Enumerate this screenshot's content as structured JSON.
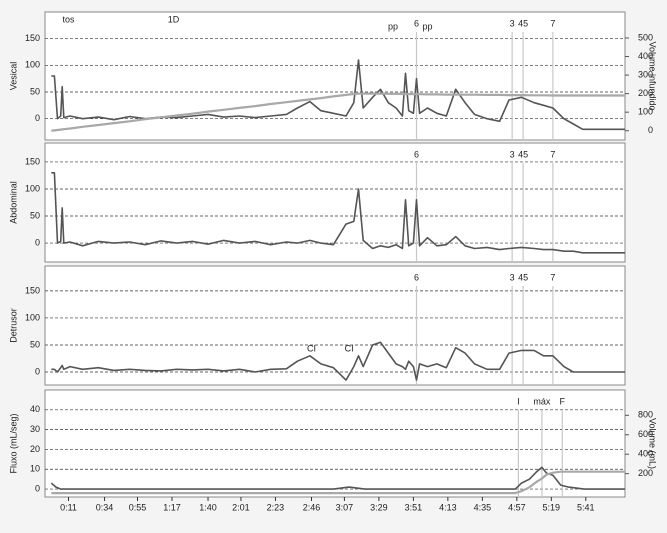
{
  "chart_data": [
    {
      "type": "line",
      "ylabel": "Vesical",
      "y2label": "Volume infundido",
      "xlim": [
        -4,
        366
      ],
      "ylim": [
        -40,
        200
      ],
      "yticks": [
        0,
        50,
        100,
        150
      ],
      "y2lim": [
        -50,
        640
      ],
      "y2ticks": [
        0,
        100,
        200,
        300,
        400,
        500
      ],
      "grid": true,
      "x": [
        0,
        2,
        4,
        6,
        7,
        8,
        12,
        20,
        30,
        40,
        50,
        60,
        70,
        80,
        90,
        100,
        110,
        120,
        130,
        140,
        150,
        157,
        165,
        172,
        180,
        188,
        193,
        196,
        199,
        205,
        210,
        215,
        220,
        224,
        226,
        228,
        231,
        233,
        235,
        240,
        246,
        252,
        258,
        264,
        270,
        278,
        286,
        292,
        300,
        308,
        314,
        320,
        327,
        333,
        339,
        350,
        366
      ],
      "series": [
        {
          "color": "#555555",
          "values": [
            80,
            80,
            0,
            5,
            60,
            2,
            5,
            0,
            3,
            -2,
            4,
            0,
            3,
            2,
            5,
            8,
            3,
            5,
            2,
            5,
            8,
            20,
            32,
            15,
            10,
            5,
            30,
            110,
            20,
            40,
            55,
            30,
            20,
            5,
            85,
            15,
            10,
            75,
            10,
            20,
            10,
            5,
            55,
            30,
            8,
            0,
            -5,
            35,
            40,
            30,
            25,
            20,
            0,
            -10,
            -20,
            -20,
            -20
          ]
        },
        {
          "color": "#a8a8a8",
          "axis": "y2",
          "values": [
            0,
            2,
            4,
            6,
            7,
            8,
            12,
            21,
            31,
            41,
            51,
            62,
            72,
            82,
            92,
            103,
            113,
            123,
            133,
            144,
            154,
            161,
            169,
            176,
            185,
            193,
            198,
            200,
            200,
            200,
            200,
            199,
            199,
            198,
            198,
            198,
            197,
            197,
            197,
            196,
            196,
            195,
            195,
            194,
            194,
            193,
            193,
            192,
            192,
            191,
            191,
            190,
            190,
            190,
            190,
            190,
            190
          ]
        }
      ],
      "annotations": [
        {
          "text": "tos",
          "x": 11,
          "y": 185
        },
        {
          "text": "1D",
          "x": 78,
          "y": 185
        },
        {
          "text": "pp",
          "x": 218,
          "y": 172
        },
        {
          "text": "pp",
          "x": 240,
          "y": 172
        }
      ],
      "markers": [
        {
          "label": "6",
          "x": 233
        },
        {
          "label": "3",
          "x": 294
        },
        {
          "label": "45",
          "x": 301
        },
        {
          "label": "7",
          "x": 320
        }
      ]
    },
    {
      "type": "line",
      "ylabel": "Abdominal",
      "xlim": [
        -4,
        366
      ],
      "ylim": [
        -35,
        185
      ],
      "yticks": [
        0,
        50,
        100,
        150
      ],
      "grid": true,
      "x": [
        0,
        2,
        4,
        6,
        7,
        8,
        12,
        20,
        30,
        40,
        50,
        60,
        70,
        80,
        90,
        100,
        110,
        120,
        130,
        140,
        150,
        157,
        165,
        172,
        180,
        188,
        193,
        196,
        199,
        205,
        210,
        215,
        220,
        224,
        226,
        228,
        231,
        233,
        235,
        240,
        246,
        252,
        258,
        264,
        270,
        278,
        286,
        292,
        300,
        308,
        314,
        320,
        327,
        333,
        339,
        350,
        366
      ],
      "series": [
        {
          "color": "#555555",
          "values": [
            130,
            130,
            0,
            3,
            65,
            0,
            2,
            -5,
            3,
            0,
            2,
            -3,
            4,
            0,
            3,
            -2,
            5,
            0,
            3,
            -3,
            2,
            0,
            5,
            0,
            -3,
            35,
            40,
            100,
            5,
            -10,
            -5,
            -8,
            -3,
            -10,
            80,
            -5,
            0,
            80,
            -5,
            10,
            -5,
            -3,
            12,
            -5,
            -10,
            -8,
            -12,
            -10,
            -8,
            -10,
            -12,
            -12,
            -15,
            -15,
            -18,
            -18,
            -18
          ]
        }
      ],
      "markers": [
        {
          "label": "6",
          "x": 233
        },
        {
          "label": "3",
          "x": 294
        },
        {
          "label": "45",
          "x": 301
        },
        {
          "label": "7",
          "x": 320
        }
      ]
    },
    {
      "type": "line",
      "ylabel": "Detrusor",
      "xlim": [
        -4,
        366
      ],
      "ylim": [
        -24,
        196
      ],
      "yticks": [
        0,
        50,
        100,
        150
      ],
      "grid": true,
      "x": [
        0,
        2,
        4,
        6,
        7,
        8,
        12,
        20,
        30,
        40,
        50,
        60,
        70,
        80,
        90,
        100,
        110,
        120,
        130,
        140,
        150,
        157,
        165,
        172,
        180,
        188,
        193,
        196,
        199,
        205,
        210,
        215,
        220,
        224,
        226,
        228,
        231,
        233,
        235,
        240,
        246,
        252,
        258,
        264,
        270,
        278,
        286,
        292,
        300,
        308,
        314,
        320,
        327,
        333,
        339,
        350,
        366
      ],
      "series": [
        {
          "color": "#555555",
          "values": [
            5,
            5,
            0,
            8,
            12,
            5,
            10,
            5,
            8,
            3,
            5,
            3,
            2,
            5,
            4,
            5,
            2,
            5,
            0,
            5,
            6,
            20,
            30,
            15,
            8,
            -15,
            10,
            30,
            10,
            50,
            55,
            35,
            15,
            10,
            5,
            20,
            10,
            -15,
            15,
            10,
            15,
            8,
            45,
            35,
            15,
            5,
            5,
            35,
            40,
            40,
            30,
            30,
            10,
            0,
            0,
            0,
            0
          ]
        }
      ],
      "annotations": [
        {
          "text": "CI",
          "x": 166,
          "y": 42
        },
        {
          "text": "CI",
          "x": 190,
          "y": 42
        }
      ],
      "markers": [
        {
          "label": "6",
          "x": 233
        },
        {
          "label": "3",
          "x": 294
        },
        {
          "label": "45",
          "x": 301
        },
        {
          "label": "7",
          "x": 320
        }
      ]
    },
    {
      "type": "line",
      "ylabel": "Fluxo (mL/seg)",
      "y2label": "Volume (mL)",
      "xlim": [
        -4,
        366
      ],
      "ylim": [
        -4,
        50
      ],
      "yticks": [
        0,
        10,
        20,
        30,
        40
      ],
      "y2lim": [
        -40,
        1060
      ],
      "y2ticks": [
        200,
        400,
        600,
        800
      ],
      "grid": true,
      "xticks": [
        {
          "value": 11,
          "label": "0:11"
        },
        {
          "value": 34,
          "label": "0:34"
        },
        {
          "value": 55,
          "label": "0:55"
        },
        {
          "value": 77,
          "label": "1:17"
        },
        {
          "value": 100,
          "label": "1:40"
        },
        {
          "value": 121,
          "label": "2:01"
        },
        {
          "value": 143,
          "label": "2:23"
        },
        {
          "value": 166,
          "label": "2:46"
        },
        {
          "value": 187,
          "label": "3:07"
        },
        {
          "value": 209,
          "label": "3:29"
        },
        {
          "value": 231,
          "label": "3:51"
        },
        {
          "value": 253,
          "label": "4:13"
        },
        {
          "value": 275,
          "label": "4:35"
        },
        {
          "value": 297,
          "label": "4:57"
        },
        {
          "value": 319,
          "label": "5:19"
        },
        {
          "value": 341,
          "label": "5:41"
        }
      ],
      "x": [
        0,
        3,
        6,
        20,
        60,
        100,
        140,
        180,
        190,
        200,
        240,
        280,
        296,
        300,
        305,
        310,
        313,
        316,
        320,
        325,
        330,
        340,
        366
      ],
      "series": [
        {
          "color": "#555555",
          "values": [
            3,
            1,
            0,
            0,
            0,
            0,
            0,
            0,
            1,
            0,
            0,
            0,
            0,
            3,
            5,
            9,
            11,
            8,
            7,
            2,
            1,
            0,
            0
          ]
        },
        {
          "color": "#a8a8a8",
          "axis": "y2",
          "values": [
            0,
            0,
            0,
            0,
            0,
            0,
            0,
            0,
            0,
            0,
            0,
            0,
            0,
            20,
            60,
            120,
            150,
            190,
            210,
            220,
            220,
            220,
            220
          ]
        }
      ],
      "markers": [
        {
          "label": "I",
          "x": 298
        },
        {
          "label": "máx",
          "x": 313
        },
        {
          "label": "F",
          "x": 326
        }
      ]
    }
  ]
}
